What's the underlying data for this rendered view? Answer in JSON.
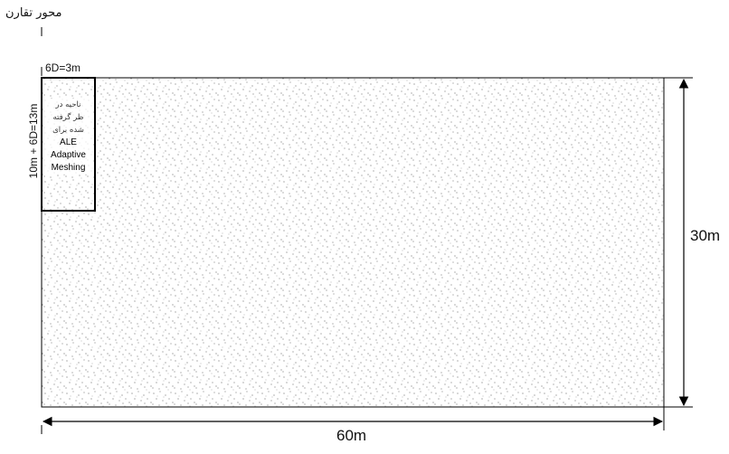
{
  "labels": {
    "axis_of_symmetry": "محور تقارن",
    "top_width": "6D=3m",
    "vertical_depth": "10m + 6D=13m",
    "height": "30m",
    "width": "60m"
  },
  "ale_region": {
    "line1": "ناحیه در",
    "line2": "ظر گرفته",
    "line3": "شده برای",
    "line4": "ALE",
    "line5": "Adaptive",
    "line6": "Meshing"
  },
  "colors": {
    "line": "#000000",
    "stipple": "#444444",
    "background": "#ffffff"
  }
}
